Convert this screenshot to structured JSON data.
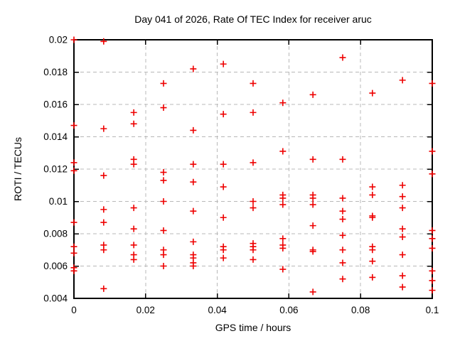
{
  "chart_data": {
    "type": "scatter",
    "title": "Day 041 of 2026, Rate Of TEC Index for receiver aruc",
    "xlabel": "GPS time / hours",
    "ylabel": "ROTI / TECUs",
    "xlim": [
      0,
      0.1
    ],
    "ylim": [
      0.004,
      0.02
    ],
    "x_ticks": [
      0,
      0.02,
      0.04,
      0.06,
      0.08,
      0.1
    ],
    "x_tick_labels": [
      "0",
      "0.02",
      "0.04",
      "0.06",
      "0.08",
      "0.1"
    ],
    "y_ticks": [
      0.004,
      0.006,
      0.008,
      0.01,
      0.012,
      0.014,
      0.016,
      0.018,
      0.02
    ],
    "y_tick_labels": [
      "0.004",
      "0.006",
      "0.008",
      "0.01",
      "0.012",
      "0.014",
      "0.016",
      "0.018",
      "0.02"
    ],
    "grid": true,
    "legend": "none",
    "marker_shape": "plus",
    "marker_color": "#ee0000",
    "grid_color": "#b8b8b8",
    "axis_color": "#000000",
    "background_color": "#ffffff",
    "series": [
      {
        "name": "ROTI",
        "points": [
          [
            0,
            0.02
          ],
          [
            0,
            0.0147
          ],
          [
            0,
            0.0124
          ],
          [
            0,
            0.0119
          ],
          [
            0,
            0.0087
          ],
          [
            0,
            0.0072
          ],
          [
            0,
            0.0068
          ],
          [
            0,
            0.0059
          ],
          [
            0,
            0.0057
          ],
          [
            0.0083,
            0.0199
          ],
          [
            0.0083,
            0.0145
          ],
          [
            0.0083,
            0.0116
          ],
          [
            0.0083,
            0.0095
          ],
          [
            0.0083,
            0.0087
          ],
          [
            0.0083,
            0.0073
          ],
          [
            0.0083,
            0.007
          ],
          [
            0.0083,
            0.0046
          ],
          [
            0.0167,
            0.0155
          ],
          [
            0.0167,
            0.0148
          ],
          [
            0.0167,
            0.0126
          ],
          [
            0.0167,
            0.0123
          ],
          [
            0.0167,
            0.0096
          ],
          [
            0.0167,
            0.0083
          ],
          [
            0.0167,
            0.0073
          ],
          [
            0.0167,
            0.0067
          ],
          [
            0.0167,
            0.0064
          ],
          [
            0.025,
            0.0173
          ],
          [
            0.025,
            0.0158
          ],
          [
            0.025,
            0.0118
          ],
          [
            0.025,
            0.0113
          ],
          [
            0.025,
            0.01
          ],
          [
            0.025,
            0.0082
          ],
          [
            0.025,
            0.007
          ],
          [
            0.025,
            0.0067
          ],
          [
            0.025,
            0.006
          ],
          [
            0.0333,
            0.0182
          ],
          [
            0.0333,
            0.0144
          ],
          [
            0.0333,
            0.0123
          ],
          [
            0.0333,
            0.0112
          ],
          [
            0.0333,
            0.0094
          ],
          [
            0.0333,
            0.0075
          ],
          [
            0.0333,
            0.0067
          ],
          [
            0.0333,
            0.0065
          ],
          [
            0.0333,
            0.0062
          ],
          [
            0.0333,
            0.006
          ],
          [
            0.0417,
            0.0185
          ],
          [
            0.0417,
            0.0154
          ],
          [
            0.0417,
            0.0123
          ],
          [
            0.0417,
            0.0109
          ],
          [
            0.0417,
            0.009
          ],
          [
            0.0417,
            0.0072
          ],
          [
            0.0417,
            0.007
          ],
          [
            0.0417,
            0.0065
          ],
          [
            0.05,
            0.0173
          ],
          [
            0.05,
            0.0155
          ],
          [
            0.05,
            0.0124
          ],
          [
            0.05,
            0.01
          ],
          [
            0.05,
            0.0096
          ],
          [
            0.05,
            0.0074
          ],
          [
            0.05,
            0.0072
          ],
          [
            0.05,
            0.007
          ],
          [
            0.05,
            0.0064
          ],
          [
            0.0583,
            0.0161
          ],
          [
            0.0583,
            0.0131
          ],
          [
            0.0583,
            0.0104
          ],
          [
            0.0583,
            0.0102
          ],
          [
            0.0583,
            0.0098
          ],
          [
            0.0583,
            0.0077
          ],
          [
            0.0583,
            0.0073
          ],
          [
            0.0583,
            0.0071
          ],
          [
            0.0583,
            0.0058
          ],
          [
            0.0667,
            0.0166
          ],
          [
            0.0667,
            0.0126
          ],
          [
            0.0667,
            0.0104
          ],
          [
            0.0667,
            0.0102
          ],
          [
            0.0667,
            0.0098
          ],
          [
            0.0667,
            0.0085
          ],
          [
            0.0667,
            0.007
          ],
          [
            0.0667,
            0.0069
          ],
          [
            0.0667,
            0.0044
          ],
          [
            0.075,
            0.0189
          ],
          [
            0.075,
            0.0126
          ],
          [
            0.075,
            0.0102
          ],
          [
            0.075,
            0.0094
          ],
          [
            0.075,
            0.0089
          ],
          [
            0.075,
            0.0079
          ],
          [
            0.075,
            0.007
          ],
          [
            0.075,
            0.0062
          ],
          [
            0.075,
            0.0052
          ],
          [
            0.0833,
            0.0167
          ],
          [
            0.0833,
            0.0109
          ],
          [
            0.0833,
            0.0104
          ],
          [
            0.0833,
            0.0091
          ],
          [
            0.0833,
            0.009
          ],
          [
            0.0833,
            0.0072
          ],
          [
            0.0833,
            0.007
          ],
          [
            0.0833,
            0.0063
          ],
          [
            0.0833,
            0.0053
          ],
          [
            0.0917,
            0.0175
          ],
          [
            0.0917,
            0.011
          ],
          [
            0.0917,
            0.0103
          ],
          [
            0.0917,
            0.0096
          ],
          [
            0.0917,
            0.0083
          ],
          [
            0.0917,
            0.0078
          ],
          [
            0.0917,
            0.0067
          ],
          [
            0.0917,
            0.0054
          ],
          [
            0.0917,
            0.0047
          ],
          [
            0.1,
            0.0173
          ],
          [
            0.1,
            0.0131
          ],
          [
            0.1,
            0.0117
          ],
          [
            0.1,
            0.0082
          ],
          [
            0.1,
            0.0077
          ],
          [
            0.1,
            0.0071
          ],
          [
            0.1,
            0.0057
          ],
          [
            0.1,
            0.0051
          ],
          [
            0.1,
            0.0045
          ]
        ]
      }
    ]
  }
}
